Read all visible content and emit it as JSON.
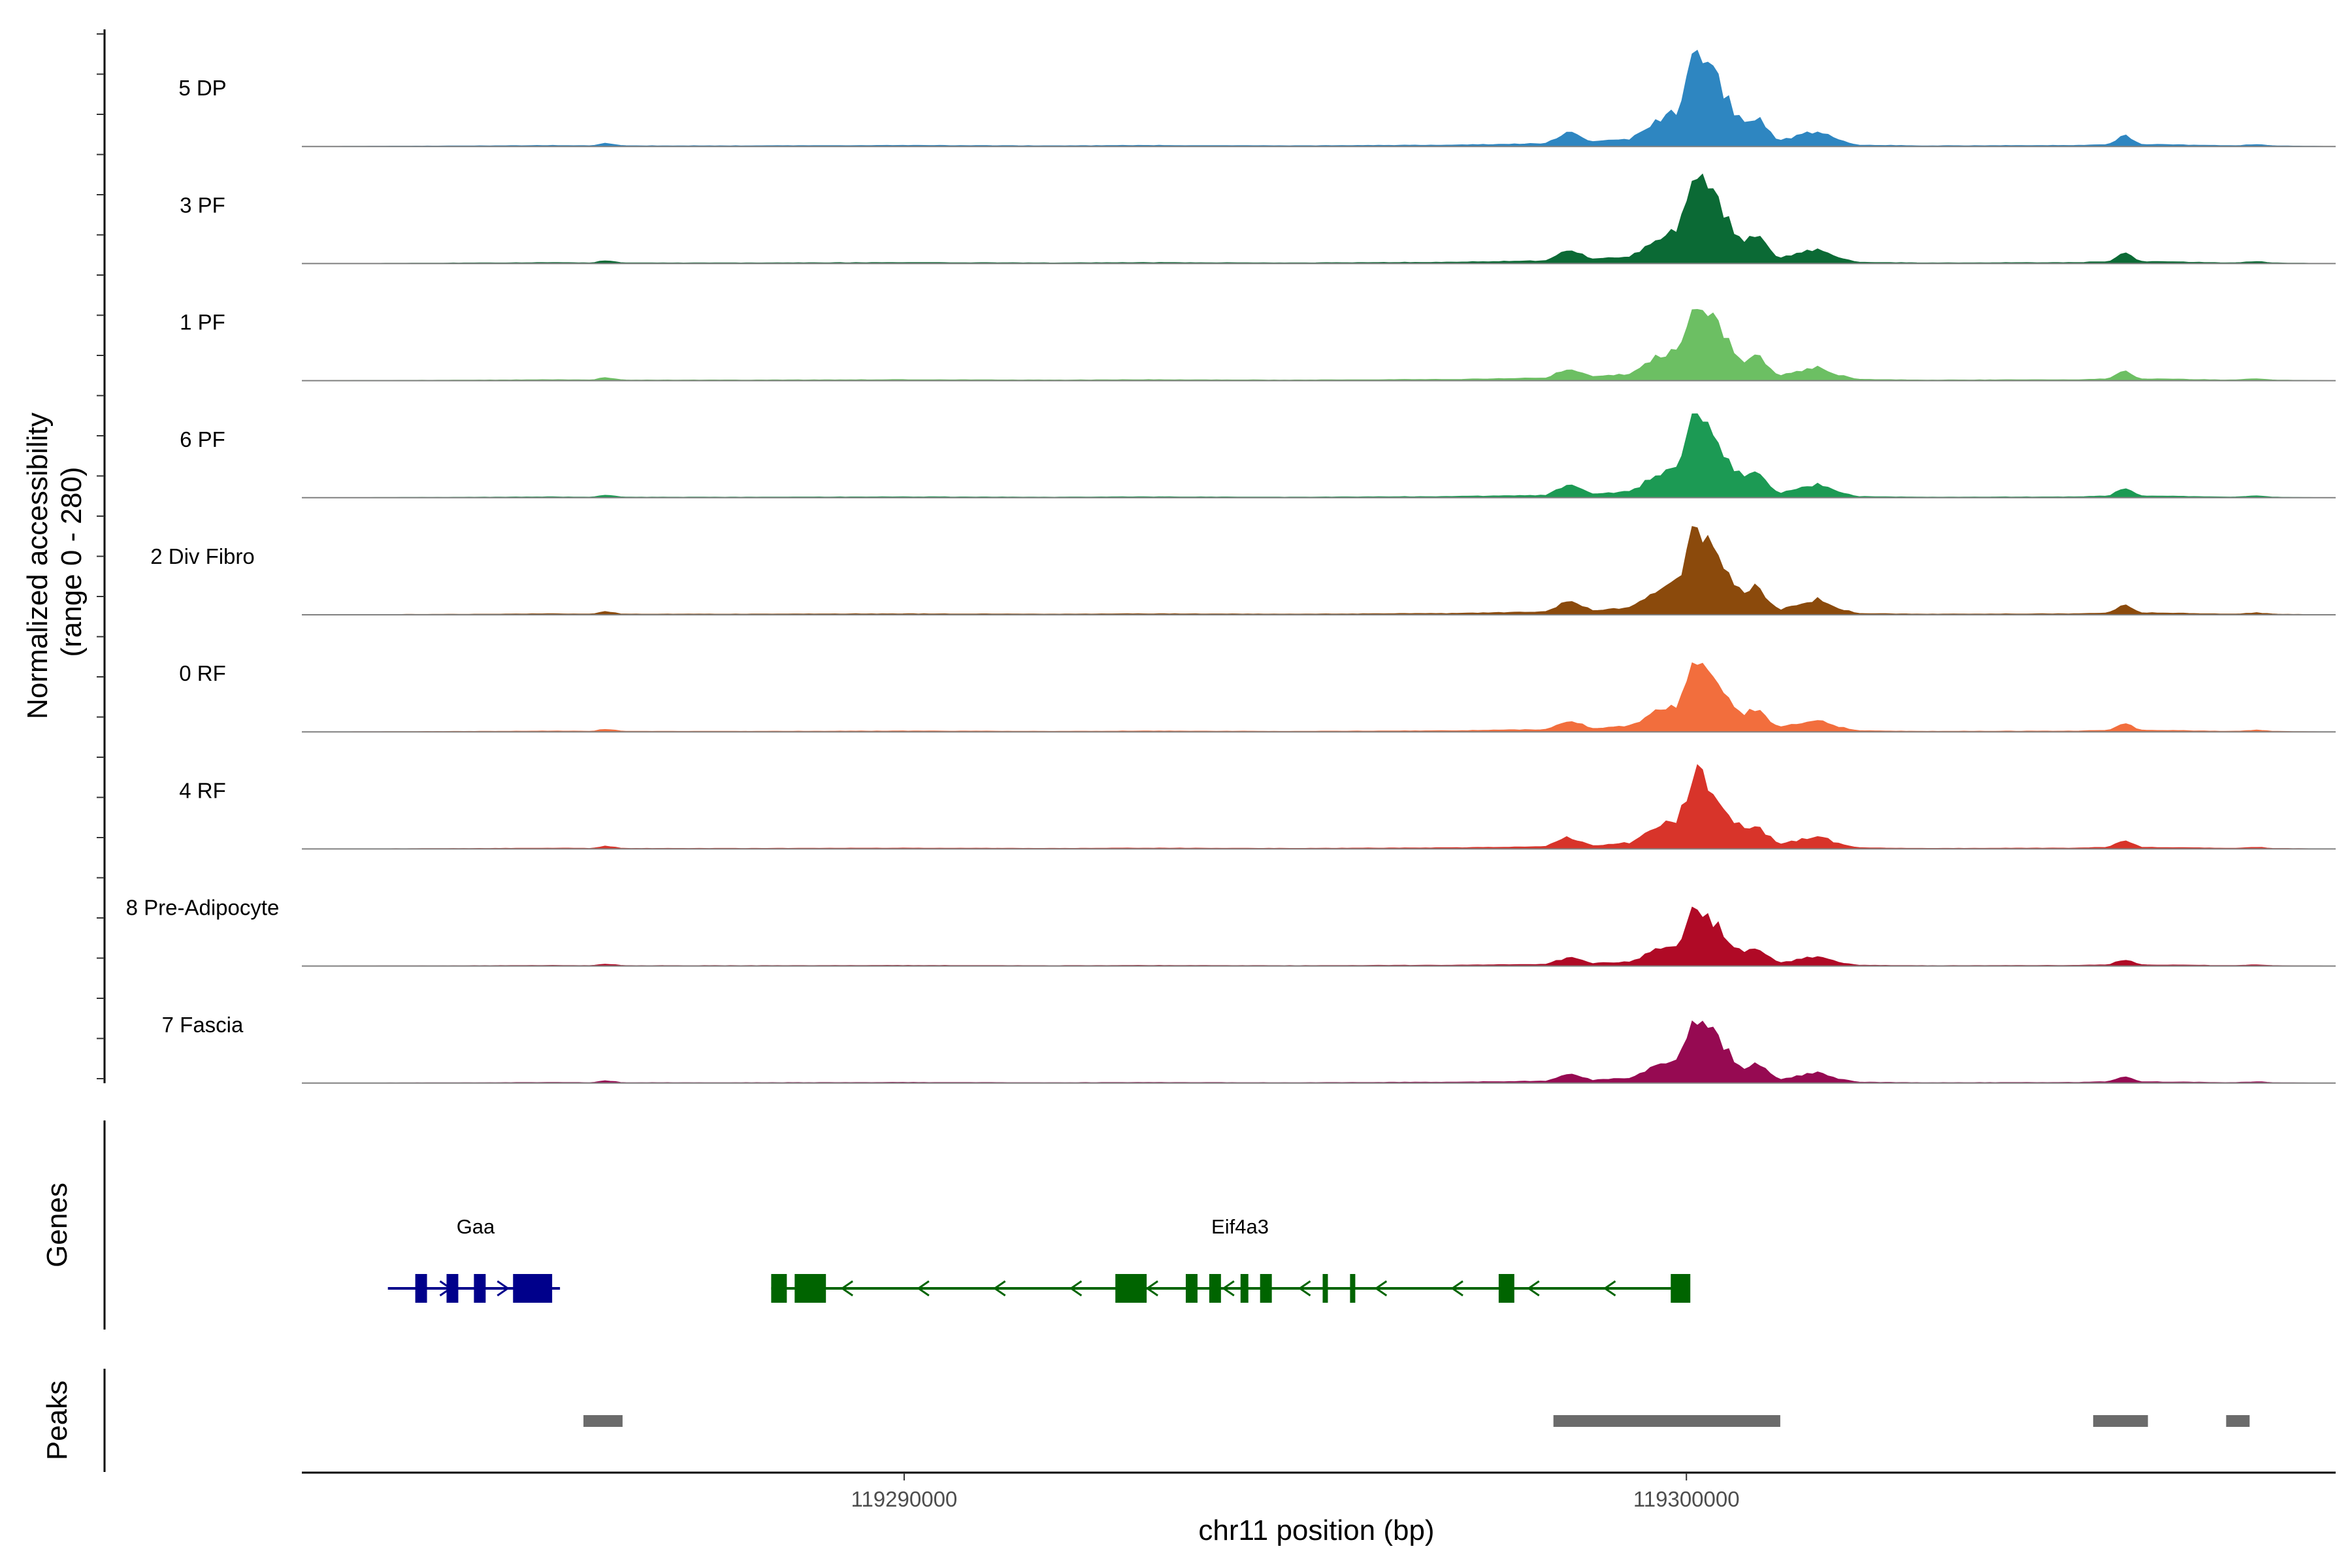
{
  "figure": {
    "y_axis_title_line1": "Normalized accessibility",
    "y_axis_title_line2": "(range 0 - 280)",
    "genes_panel_title": "Genes",
    "peaks_panel_title": "Peaks",
    "x_axis_title": "chr11 position (bp)"
  },
  "chart_data": {
    "type": "area",
    "chromosome": "chr11",
    "xlabel": "chr11 position (bp)",
    "ylabel": "Normalized accessibility (range 0 - 280)",
    "ylim": [
      0,
      280
    ],
    "xlim": [
      119282300,
      119308300
    ],
    "x_ticks": [
      {
        "value": 119290000,
        "label": "119290000"
      },
      {
        "value": 119300000,
        "label": "119300000"
      }
    ],
    "grid": false,
    "legend": "none",
    "peak_profile_points": [
      [
        119282300,
        0
      ],
      [
        119284800,
        2
      ],
      [
        119285500,
        3
      ],
      [
        119286000,
        2
      ],
      [
        119286200,
        10
      ],
      [
        119286400,
        2
      ],
      [
        119288000,
        2
      ],
      [
        119290000,
        3
      ],
      [
        119292000,
        2
      ],
      [
        119293000,
        3
      ],
      [
        119295000,
        2
      ],
      [
        119297000,
        4
      ],
      [
        119298200,
        8
      ],
      [
        119298500,
        40
      ],
      [
        119298800,
        12
      ],
      [
        119299300,
        20
      ],
      [
        119299600,
        70
      ],
      [
        119299900,
        95
      ],
      [
        119300100,
        255
      ],
      [
        119300250,
        220
      ],
      [
        119300400,
        180
      ],
      [
        119300600,
        100
      ],
      [
        119300750,
        60
      ],
      [
        119300900,
        80
      ],
      [
        119301100,
        30
      ],
      [
        119301200,
        15
      ],
      [
        119301700,
        45
      ],
      [
        119301900,
        20
      ],
      [
        119302200,
        4
      ],
      [
        119303000,
        2
      ],
      [
        119305000,
        3
      ],
      [
        119305400,
        6
      ],
      [
        119305600,
        30
      ],
      [
        119305800,
        6
      ],
      [
        119307000,
        2
      ],
      [
        119307300,
        6
      ],
      [
        119307500,
        2
      ],
      [
        119308300,
        0
      ]
    ],
    "series": [
      {
        "name": "5 DP",
        "color": "#2E86C1",
        "scale": 0.92
      },
      {
        "name": "3 PF",
        "color": "#0B6A35",
        "scale": 0.88
      },
      {
        "name": "1 PF",
        "color": "#6CBF63",
        "scale": 0.82
      },
      {
        "name": "6 PF",
        "color": "#1C9A54",
        "scale": 0.78
      },
      {
        "name": "2 Div Fibro",
        "color": "#8B4A0C",
        "scale": 0.88
      },
      {
        "name": "0 RF",
        "color": "#F26E3D",
        "scale": 0.74
      },
      {
        "name": "4 RF",
        "color": "#D8342A",
        "scale": 0.76
      },
      {
        "name": "8 Pre-Adipocyte",
        "color": "#B00A26",
        "scale": 0.55
      },
      {
        "name": "7 Fascia",
        "color": "#960A52",
        "scale": 0.62
      }
    ],
    "genes": [
      {
        "name": "Gaa",
        "start": 119283400,
        "end": 119285600,
        "strand": "+",
        "color": "#00008B",
        "exons": [
          [
            119283750,
            119283900
          ],
          [
            119284150,
            119284300
          ],
          [
            119284500,
            119284650
          ],
          [
            119285000,
            119285500
          ]
        ]
      },
      {
        "name": "Eif4a3",
        "start": 119288300,
        "end": 119300000,
        "strand": "-",
        "color": "#006400",
        "exons": [
          [
            119288300,
            119288500
          ],
          [
            119288600,
            119289000
          ],
          [
            119292700,
            119293100
          ],
          [
            119293600,
            119293750
          ],
          [
            119293900,
            119294050
          ],
          [
            119294300,
            119294400
          ],
          [
            119294550,
            119294700
          ],
          [
            119295350,
            119295400
          ],
          [
            119295700,
            119295750
          ],
          [
            119297600,
            119297800
          ],
          [
            119299800,
            119300050
          ]
        ]
      }
    ],
    "peaks": [
      [
        119285900,
        119286400
      ],
      [
        119298300,
        119301200
      ],
      [
        119305200,
        119305900
      ],
      [
        119306900,
        119307200
      ]
    ]
  }
}
